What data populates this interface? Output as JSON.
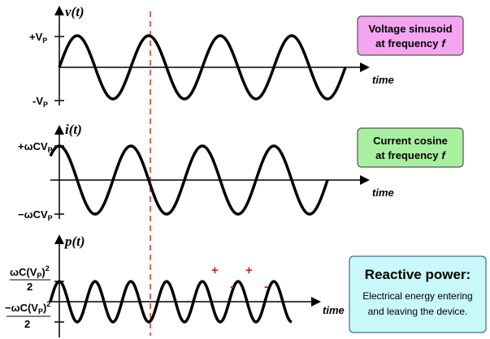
{
  "panels": [
    {
      "axis_label": "v(t)",
      "ticks": [
        {
          "main": "+V",
          "sub": "P"
        },
        {
          "main": "-V",
          "sub": "P"
        }
      ],
      "time_label": "time",
      "note": [
        {
          "text": "Voltage sinusoid"
        },
        {
          "text": "at frequency",
          "var": "f"
        }
      ]
    },
    {
      "axis_label": "i(t)",
      "ticks": [
        {
          "main": "+ωCV",
          "sub": "P"
        },
        {
          "main": "−ωCV",
          "sub": "P"
        }
      ],
      "time_label": "time",
      "note": [
        {
          "text": "Current cosine"
        },
        {
          "text": "at frequency",
          "var": "f"
        }
      ]
    },
    {
      "axis_label": "p(t)",
      "ticks": [
        {
          "main": "ωC(V",
          "sub": "P",
          "close": ")",
          "sup": "2",
          "den": "2"
        },
        {
          "main": "−ωC(V",
          "sub": "P",
          "close": ")",
          "sup": "2",
          "den": "2"
        }
      ],
      "time_label": "time",
      "signs": [
        "+",
        "-",
        "+",
        "-"
      ],
      "note": [
        {
          "text": "Reactive power:"
        },
        {
          "text": "Electrical energy entering"
        },
        {
          "text": "and leaving the device."
        }
      ]
    }
  ]
}
